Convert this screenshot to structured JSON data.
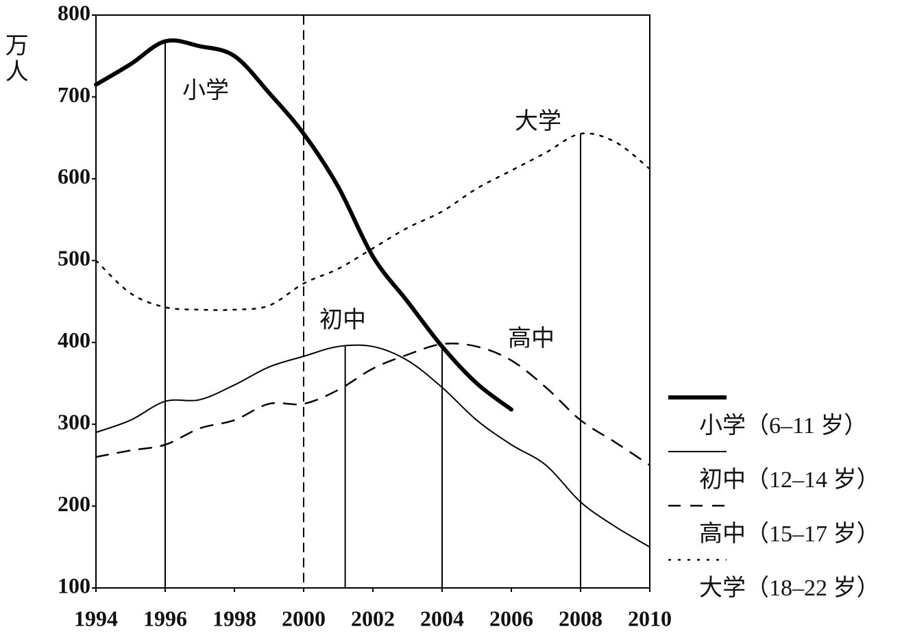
{
  "chart_data": {
    "type": "line",
    "y_label": "万人",
    "x": [
      1994,
      1995,
      1996,
      1997,
      1998,
      1999,
      2000,
      2001,
      2002,
      2003,
      2004,
      2005,
      2006,
      2007,
      2008,
      2009,
      2010
    ],
    "xlim": [
      1994,
      2010
    ],
    "xticks": [
      1994,
      1996,
      1998,
      2000,
      2002,
      2004,
      2006,
      2008,
      2010
    ],
    "ylim": [
      100,
      800
    ],
    "yticks": [
      100,
      200,
      300,
      400,
      500,
      600,
      700,
      800
    ],
    "series": [
      {
        "name": "小学（6–11 岁）",
        "color": "#000000",
        "style": "thick",
        "values": [
          715,
          740,
          768,
          762,
          750,
          705,
          655,
          590,
          505,
          450,
          395,
          350,
          318,
          null,
          null,
          null,
          null
        ]
      },
      {
        "name": "初中（12–14 岁）",
        "color": "#000000",
        "style": "solid",
        "values": [
          290,
          305,
          328,
          330,
          348,
          370,
          383,
          395,
          395,
          378,
          345,
          305,
          275,
          250,
          205,
          175,
          150
        ]
      },
      {
        "name": "高中（15–17 岁）",
        "color": "#000000",
        "style": "dashed",
        "values": [
          260,
          268,
          275,
          295,
          305,
          325,
          325,
          342,
          368,
          385,
          398,
          395,
          378,
          345,
          305,
          278,
          250
        ]
      },
      {
        "name": "大学（18–22 岁）",
        "color": "#000000",
        "style": "dotted",
        "values": [
          500,
          460,
          443,
          440,
          440,
          445,
          472,
          490,
          515,
          540,
          560,
          588,
          610,
          632,
          655,
          645,
          612
        ]
      }
    ],
    "vlines": [
      {
        "x": 1996,
        "y": 768,
        "dashed": false
      },
      {
        "x": 2000,
        "y": 800,
        "dashed": true
      },
      {
        "x": 2001.2,
        "y": 395,
        "dashed": false
      },
      {
        "x": 2004,
        "y": 398,
        "dashed": false
      },
      {
        "x": 2008,
        "y": 655,
        "dashed": false
      }
    ],
    "annotations": [
      "小学",
      "大学",
      "初中",
      "高中"
    ]
  }
}
